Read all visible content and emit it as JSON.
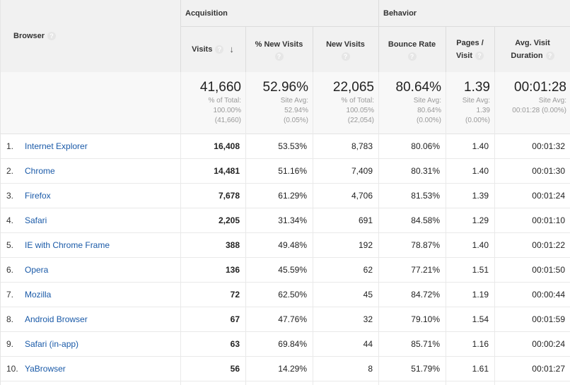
{
  "header": {
    "browser_label": "Browser",
    "group_acquisition": "Acquisition",
    "group_behavior": "Behavior",
    "columns": {
      "visits": "Visits",
      "new_visits_pct": "% New Visits",
      "new_visits": "New Visits",
      "bounce_rate": "Bounce Rate",
      "pages_line1": "Pages /",
      "pages_line2": "Visit",
      "duration_line1": "Avg. Visit",
      "duration_line2": "Duration"
    },
    "help_icon": "?",
    "sort_icon": "sort-down-arrow-icon",
    "sort_glyph": "↓"
  },
  "totals": {
    "visits": {
      "value": "41,660",
      "l1": "% of Total:",
      "l2": "100.00%",
      "l3": "(41,660)"
    },
    "new_visits_pct": {
      "value": "52.96%",
      "l1": "Site Avg:",
      "l2": "52.94%",
      "l3": "(0.05%)"
    },
    "new_visits": {
      "value": "22,065",
      "l1": "% of Total:",
      "l2": "100.05%",
      "l3": "(22,054)"
    },
    "bounce_rate": {
      "value": "80.64%",
      "l1": "Site Avg:",
      "l2": "80.64%",
      "l3": "(0.00%)"
    },
    "pages_visit": {
      "value": "1.39",
      "l1": "Site Avg:",
      "l2": "1.39",
      "l3": "(0.00%)"
    },
    "duration": {
      "value": "00:01:28",
      "l1": "Site Avg:",
      "l2": "00:01:28 (0.00%)"
    }
  },
  "rows": [
    {
      "idx": "1.",
      "name": "Internet Explorer",
      "visits": "16,408",
      "pct": "53.53%",
      "new": "8,783",
      "bounce": "80.06%",
      "pages": "1.40",
      "dur": "00:01:32"
    },
    {
      "idx": "2.",
      "name": "Chrome",
      "visits": "14,481",
      "pct": "51.16%",
      "new": "7,409",
      "bounce": "80.31%",
      "pages": "1.40",
      "dur": "00:01:30"
    },
    {
      "idx": "3.",
      "name": "Firefox",
      "visits": "7,678",
      "pct": "61.29%",
      "new": "4,706",
      "bounce": "81.53%",
      "pages": "1.39",
      "dur": "00:01:24"
    },
    {
      "idx": "4.",
      "name": "Safari",
      "visits": "2,205",
      "pct": "31.34%",
      "new": "691",
      "bounce": "84.58%",
      "pages": "1.29",
      "dur": "00:01:10"
    },
    {
      "idx": "5.",
      "name": "IE with Chrome Frame",
      "visits": "388",
      "pct": "49.48%",
      "new": "192",
      "bounce": "78.87%",
      "pages": "1.40",
      "dur": "00:01:22"
    },
    {
      "idx": "6.",
      "name": "Opera",
      "visits": "136",
      "pct": "45.59%",
      "new": "62",
      "bounce": "77.21%",
      "pages": "1.51",
      "dur": "00:01:50"
    },
    {
      "idx": "7.",
      "name": "Mozilla",
      "visits": "72",
      "pct": "62.50%",
      "new": "45",
      "bounce": "84.72%",
      "pages": "1.19",
      "dur": "00:00:44"
    },
    {
      "idx": "8.",
      "name": "Android Browser",
      "visits": "67",
      "pct": "47.76%",
      "new": "32",
      "bounce": "79.10%",
      "pages": "1.54",
      "dur": "00:01:59"
    },
    {
      "idx": "9.",
      "name": "Safari (in-app)",
      "visits": "63",
      "pct": "69.84%",
      "new": "44",
      "bounce": "85.71%",
      "pages": "1.16",
      "dur": "00:00:24"
    },
    {
      "idx": "10.",
      "name": "YaBrowser",
      "visits": "56",
      "pct": "14.29%",
      "new": "8",
      "bounce": "51.79%",
      "pages": "1.61",
      "dur": "00:01:27"
    }
  ]
}
